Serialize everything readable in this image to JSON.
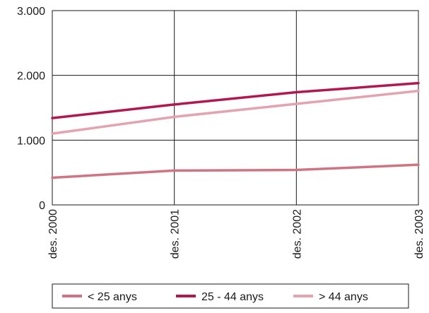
{
  "chart_data": {
    "type": "line",
    "title": "",
    "xlabel": "",
    "ylabel": "",
    "categories": [
      "des. 2000",
      "des. 2001",
      "des. 2002",
      "des. 2003"
    ],
    "ylim": [
      0,
      3000
    ],
    "yticks": [
      0,
      1000,
      2000,
      3000
    ],
    "ytick_labels": [
      "0",
      "1.000",
      "2.000",
      "3.000"
    ],
    "grid": true,
    "legend_position": "bottom",
    "series": [
      {
        "name": "< 25 anys",
        "color": "#d07484",
        "values": [
          420,
          530,
          540,
          620
        ]
      },
      {
        "name": "25 - 44 anys",
        "color": "#b3174f",
        "values": [
          1340,
          1550,
          1740,
          1880
        ]
      },
      {
        "name": "> 44 anys",
        "color": "#e4a3b0",
        "values": [
          1100,
          1360,
          1560,
          1760
        ]
      }
    ]
  }
}
